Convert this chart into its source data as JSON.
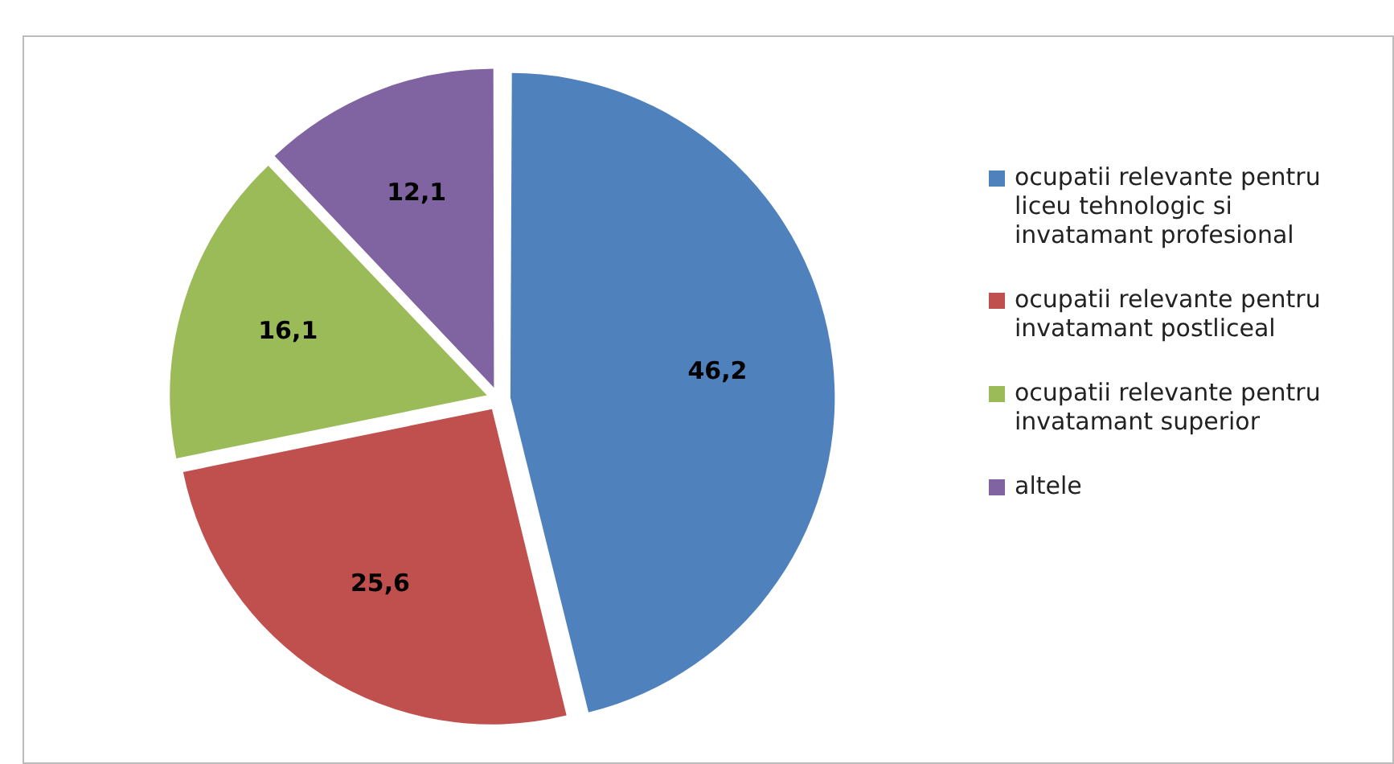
{
  "chart_data": {
    "type": "pie",
    "categories": [
      "ocupatii relevante pentru liceu tehnologic si invatamant profesional",
      "ocupatii relevante pentru invatamant postliceal",
      "ocupatii relevante pentru invatamant superior",
      "altele"
    ],
    "values": [
      46.2,
      25.6,
      16.1,
      12.1
    ],
    "colors": [
      "#4f81bd",
      "#c0504d",
      "#9bbb59",
      "#8064a2"
    ],
    "value_labels": [
      "46,2",
      "25,6",
      "16,1",
      "12,1"
    ],
    "legend": "right"
  }
}
